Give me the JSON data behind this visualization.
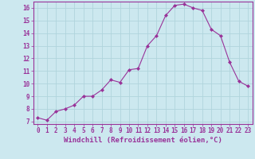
{
  "x": [
    0,
    1,
    2,
    3,
    4,
    5,
    6,
    7,
    8,
    9,
    10,
    11,
    12,
    13,
    14,
    15,
    16,
    17,
    18,
    19,
    20,
    21,
    22,
    23
  ],
  "y": [
    7.3,
    7.1,
    7.8,
    8.0,
    8.3,
    9.0,
    9.0,
    9.5,
    10.3,
    10.1,
    11.1,
    11.2,
    13.0,
    13.8,
    15.4,
    16.2,
    16.3,
    16.0,
    15.8,
    14.3,
    13.8,
    11.7,
    10.2,
    9.8
  ],
  "line_color": "#993399",
  "marker": "D",
  "marker_size": 2,
  "bg_color": "#cce8ef",
  "grid_color": "#b0d4dc",
  "xlabel": "Windchill (Refroidissement éolien,°C)",
  "xlim": [
    -0.5,
    23.5
  ],
  "ylim": [
    6.8,
    16.5
  ],
  "yticks": [
    7,
    8,
    9,
    10,
    11,
    12,
    13,
    14,
    15,
    16
  ],
  "xticks": [
    0,
    1,
    2,
    3,
    4,
    5,
    6,
    7,
    8,
    9,
    10,
    11,
    12,
    13,
    14,
    15,
    16,
    17,
    18,
    19,
    20,
    21,
    22,
    23
  ],
  "tick_label_size": 5.5,
  "xlabel_size": 6.5,
  "axis_color": "#993399",
  "spine_color": "#993399"
}
